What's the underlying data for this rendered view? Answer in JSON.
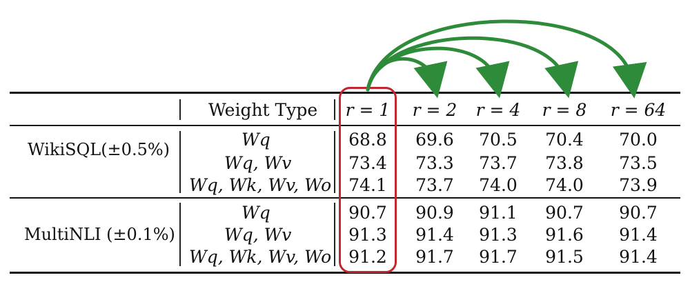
{
  "table": {
    "header": {
      "weight_type": "Weight Type",
      "rank_columns": [
        "r = 1",
        "r = 2",
        "r = 4",
        "r = 8",
        "r = 64"
      ]
    },
    "groups": [
      {
        "dataset": "WikiSQL(±0.5%)",
        "rows": [
          {
            "weights": "Wq",
            "values": [
              "68.8",
              "69.6",
              "70.5",
              "70.4",
              "70.0"
            ]
          },
          {
            "weights": "Wq, Wv",
            "values": [
              "73.4",
              "73.3",
              "73.7",
              "73.8",
              "73.5"
            ]
          },
          {
            "weights": "Wq, Wk, Wv, Wo",
            "values": [
              "74.1",
              "73.7",
              "74.0",
              "74.0",
              "73.9"
            ]
          }
        ]
      },
      {
        "dataset": "MultiNLI (±0.1%)",
        "rows": [
          {
            "weights": "Wq",
            "values": [
              "90.7",
              "90.9",
              "91.1",
              "90.7",
              "90.7"
            ]
          },
          {
            "weights": "Wq, Wv",
            "values": [
              "91.3",
              "91.4",
              "91.3",
              "91.6",
              "91.4"
            ]
          },
          {
            "weights": "Wq, Wk, Wv, Wo",
            "values": [
              "91.2",
              "91.7",
              "91.7",
              "91.5",
              "91.4"
            ]
          }
        ]
      }
    ]
  },
  "annotations": {
    "highlight_color": "#c0272d",
    "arrow_color": "#2e8b3a"
  }
}
